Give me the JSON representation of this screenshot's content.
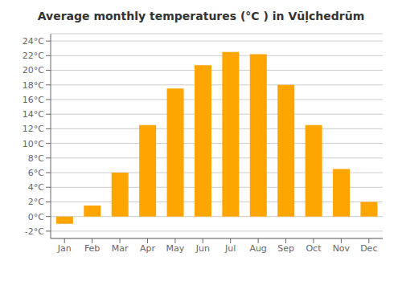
{
  "chart_data": {
    "type": "bar",
    "title": "Average monthly temperatures (°C ) in Vūļchedrūm",
    "categories": [
      "Jan",
      "Feb",
      "Mar",
      "Apr",
      "May",
      "Jun",
      "Jul",
      "Aug",
      "Sep",
      "Oct",
      "Nov",
      "Dec"
    ],
    "values": [
      -1.0,
      1.5,
      6.0,
      12.5,
      17.5,
      20.7,
      22.5,
      22.2,
      18.0,
      12.5,
      6.5,
      2.0
    ],
    "color": "#FFA500",
    "ylim": [
      -3,
      25
    ],
    "yticks": [
      {
        "value": -2,
        "label": "-2°C"
      },
      {
        "value": 0,
        "label": "0°C"
      },
      {
        "value": 2,
        "label": "2°C"
      },
      {
        "value": 4,
        "label": "4°C"
      },
      {
        "value": 6,
        "label": "6°C"
      },
      {
        "value": 8,
        "label": "8°C"
      },
      {
        "value": 10,
        "label": "10°C"
      },
      {
        "value": 12,
        "label": "12°C"
      },
      {
        "value": 14,
        "label": "14°C"
      },
      {
        "value": 16,
        "label": "16°C"
      },
      {
        "value": 18,
        "label": "18°C"
      },
      {
        "value": 20,
        "label": "20°C"
      },
      {
        "value": 22,
        "label": "22°C"
      },
      {
        "value": 24,
        "label": "24°C"
      }
    ],
    "grid": true
  }
}
